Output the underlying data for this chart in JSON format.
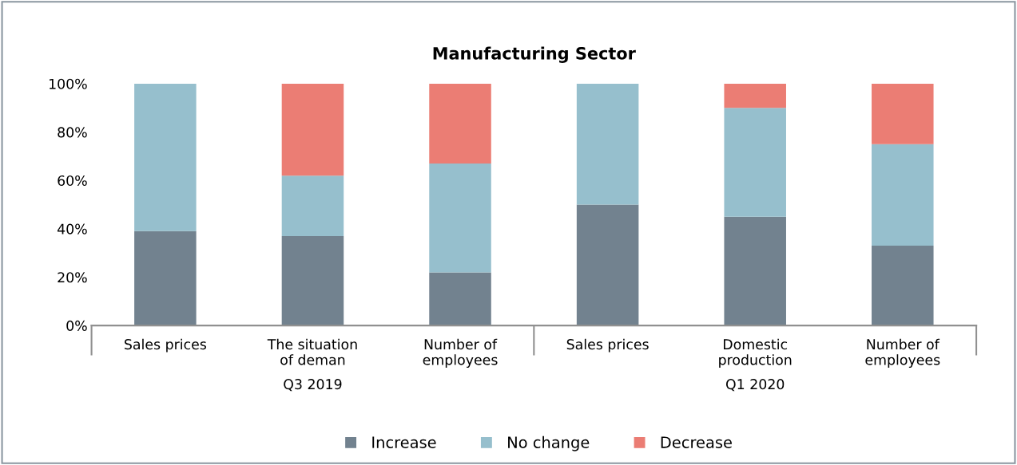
{
  "chart_data": {
    "type": "bar",
    "title": "Manufacturing Sector",
    "stacked": true,
    "categories": [
      "Sales prices",
      "The situation\nof deman",
      "Number of\nemployees",
      "Sales prices",
      "Domestic\nproduction",
      "Number of\nemployees"
    ],
    "series": [
      {
        "name": "Increase",
        "color": "#72828f",
        "values": [
          39,
          37,
          22,
          50,
          45,
          33
        ]
      },
      {
        "name": "No change",
        "color": "#96bfcd",
        "values": [
          61,
          25,
          45,
          50,
          45,
          42
        ]
      },
      {
        "name": "Decrease",
        "color": "#eb7d74",
        "values": [
          0,
          38,
          33,
          0,
          10,
          25
        ]
      }
    ],
    "ylim": [
      0,
      100
    ],
    "yticks": [
      {
        "value": 0,
        "label": "0%"
      },
      {
        "value": 20,
        "label": "20%"
      },
      {
        "value": 40,
        "label": "40%"
      },
      {
        "value": 60,
        "label": "60%"
      },
      {
        "value": 80,
        "label": "80%"
      },
      {
        "value": 100,
        "label": "100%"
      }
    ],
    "annotations": [
      "Q3 2019",
      "Q1 2020"
    ],
    "grid": false,
    "legend": "bottom"
  }
}
